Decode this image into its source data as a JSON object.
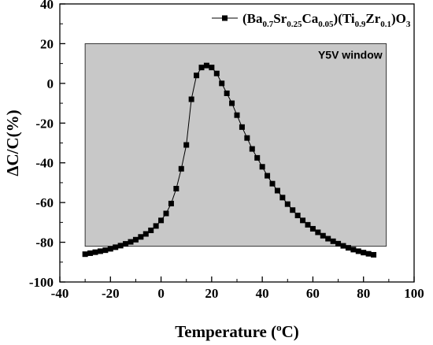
{
  "chart_data": {
    "type": "scatter",
    "xlabel": "Temperature (°C)",
    "xlabel_parts": {
      "main": "Temperature (",
      "sup": "o",
      "tail": "C)"
    },
    "ylabel": "ΔC/C(%)",
    "xlim": [
      -40,
      100
    ],
    "ylim": [
      -100,
      40
    ],
    "xticks": [
      -40,
      -20,
      0,
      20,
      40,
      60,
      80,
      100
    ],
    "yticks": [
      -100,
      -80,
      -60,
      -40,
      -20,
      0,
      20,
      40
    ],
    "grid": false,
    "legend_position": "top-right",
    "legend": {
      "marker": "square",
      "parts": [
        {
          "t": "(Ba"
        },
        {
          "t": "0.7",
          "sub": true
        },
        {
          "t": "Sr"
        },
        {
          "t": "0.25",
          "sub": true
        },
        {
          "t": "Ca"
        },
        {
          "t": "0.05",
          "sub": true
        },
        {
          "t": ")(Ti"
        },
        {
          "t": "0.9",
          "sub": true
        },
        {
          "t": "Zr"
        },
        {
          "t": "0.1",
          "sub": true
        },
        {
          "t": ")O"
        },
        {
          "t": "3",
          "sub": true
        }
      ]
    },
    "window": {
      "label": "Y5V window",
      "x_range": [
        -30,
        89
      ],
      "y_range": [
        -82,
        20
      ],
      "color": "#c8c8c8"
    },
    "series": [
      {
        "name": "(Ba0.7Sr0.25Ca0.05)(Ti0.9Zr0.1)O3",
        "color": "#000000",
        "x": [
          -30,
          -28,
          -26,
          -24,
          -22,
          -20,
          -18,
          -16,
          -14,
          -12,
          -10,
          -8,
          -6,
          -4,
          -2,
          0,
          2,
          4,
          6,
          8,
          10,
          12,
          14,
          16,
          18,
          20,
          22,
          24,
          26,
          28,
          30,
          32,
          34,
          36,
          38,
          40,
          42,
          44,
          46,
          48,
          50,
          52,
          54,
          56,
          58,
          60,
          62,
          64,
          66,
          68,
          70,
          72,
          74,
          76,
          78,
          80,
          82,
          84
        ],
        "y": [
          -86,
          -85.5,
          -85,
          -84.5,
          -84,
          -83.3,
          -82.5,
          -81.7,
          -80.8,
          -79.8,
          -78.7,
          -77.3,
          -75.8,
          -74,
          -71.8,
          -69,
          -65.5,
          -60.5,
          -53,
          -43,
          -31,
          -8,
          4,
          8,
          9,
          8,
          5,
          0,
          -5,
          -10,
          -16,
          -22,
          -27.5,
          -33,
          -37.5,
          -42,
          -46.5,
          -50.5,
          -54,
          -57.5,
          -60.8,
          -63.8,
          -66.5,
          -69,
          -71.2,
          -73.2,
          -75,
          -76.7,
          -78.2,
          -79.5,
          -80.7,
          -81.8,
          -82.8,
          -83.7,
          -84.5,
          -85.2,
          -85.8,
          -86.3
        ]
      }
    ]
  }
}
